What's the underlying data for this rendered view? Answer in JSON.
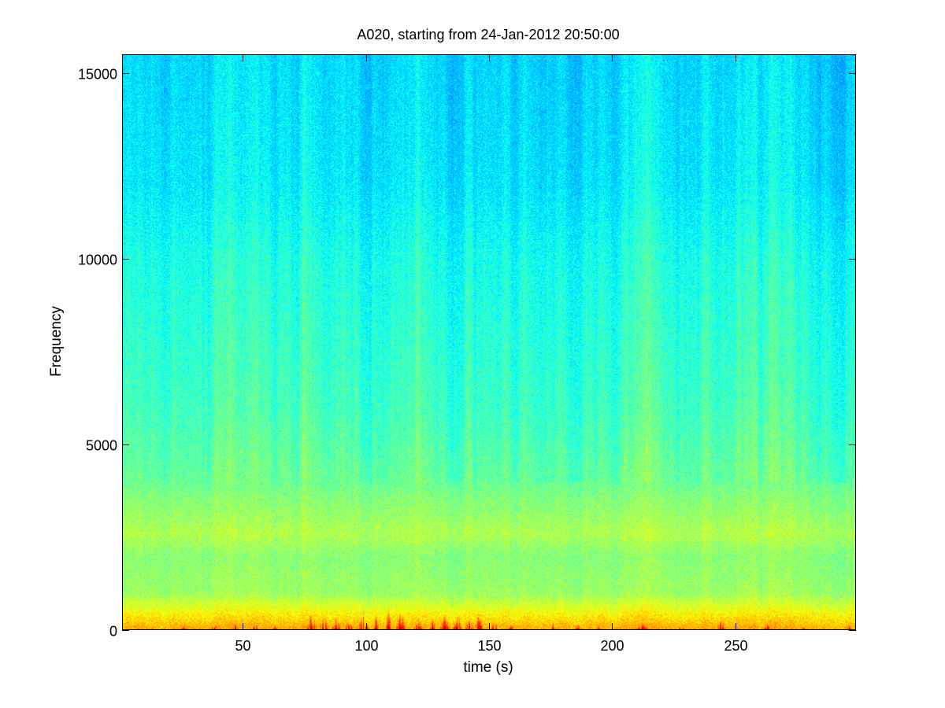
{
  "chart_data": {
    "type": "heatmap",
    "subtype": "spectrogram",
    "title": "A020, starting from 24-Jan-2012 20:50:00",
    "xlabel": "time (s)",
    "ylabel": "Frequency",
    "xlim": [
      1,
      299
    ],
    "ylim": [
      0,
      15500
    ],
    "xticks": [
      50,
      100,
      150,
      200,
      250
    ],
    "yticks": [
      0,
      5000,
      10000,
      15000
    ],
    "colormap": "jet",
    "grid": false,
    "legend": "none",
    "intensity_profile": {
      "frequency": [
        0,
        300,
        600,
        1000,
        2000,
        2600,
        3000,
        3700,
        4000,
        6000,
        8000,
        10000,
        12000,
        15500
      ],
      "level": [
        0.72,
        0.66,
        0.6,
        0.53,
        0.51,
        0.55,
        0.53,
        0.5,
        0.48,
        0.44,
        0.42,
        0.4,
        0.36,
        0.34
      ]
    },
    "transient_events": {
      "time": [
        26,
        38,
        47,
        55,
        63,
        78,
        83,
        88,
        93,
        99,
        104,
        109,
        114,
        121,
        127,
        132,
        137,
        142,
        146,
        152,
        159,
        176,
        186,
        194,
        212,
        228,
        244,
        263,
        278,
        296
      ],
      "peak_frequency": [
        200,
        350,
        300,
        250,
        200,
        650,
        500,
        450,
        400,
        600,
        500,
        700,
        650,
        400,
        450,
        500,
        550,
        650,
        600,
        350,
        250,
        250,
        200,
        200,
        250,
        200,
        550,
        200,
        150,
        150
      ]
    },
    "colors": {
      "low": "#00ffff",
      "mid": "#80ff80",
      "high": "#ffff00",
      "peak": "#ff0000"
    }
  }
}
